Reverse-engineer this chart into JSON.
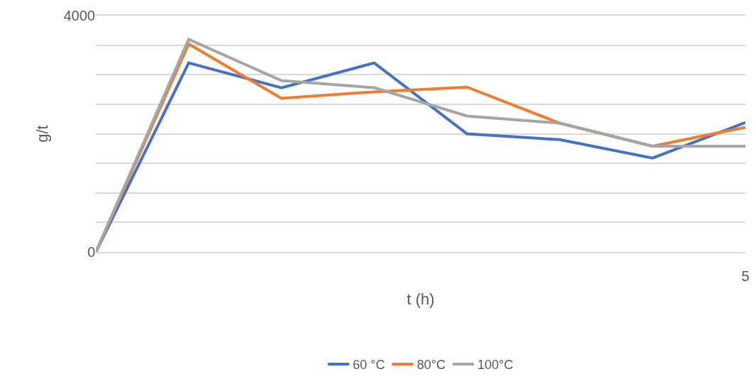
{
  "chart_data": {
    "type": "line",
    "xlabel": "t (h)",
    "ylabel": "g/t",
    "categories": [
      null,
      null,
      null,
      null,
      null,
      null,
      null,
      "5"
    ],
    "series": [
      {
        "name": "60 °C",
        "color": "#4472c4",
        "values": [
          0,
          3200,
          2780,
          3200,
          2000,
          1900,
          1590,
          2190
        ]
      },
      {
        "name": "80°C",
        "color": "#ed7d31",
        "values": [
          0,
          3520,
          2600,
          2710,
          2790,
          2180,
          1790,
          2110
        ]
      },
      {
        "name": "100°C",
        "color": "#a5a5a5",
        "values": [
          0,
          3600,
          2900,
          2780,
          2300,
          2180,
          1790,
          1790
        ]
      }
    ],
    "ylim": [
      0,
      4000
    ],
    "yticks": [
      0,
      {
        "value": 500,
        "label": null
      },
      {
        "value": 1000,
        "label": null
      },
      {
        "value": 1500,
        "label": null
      },
      {
        "value": 2000,
        "label": null
      },
      {
        "value": 2500,
        "label": null
      },
      {
        "value": 3000,
        "label": null
      },
      {
        "value": 3500,
        "label": null
      },
      4000
    ],
    "grid": "y",
    "legend": "bottom",
    "marker": "none",
    "line_style": "solid"
  }
}
